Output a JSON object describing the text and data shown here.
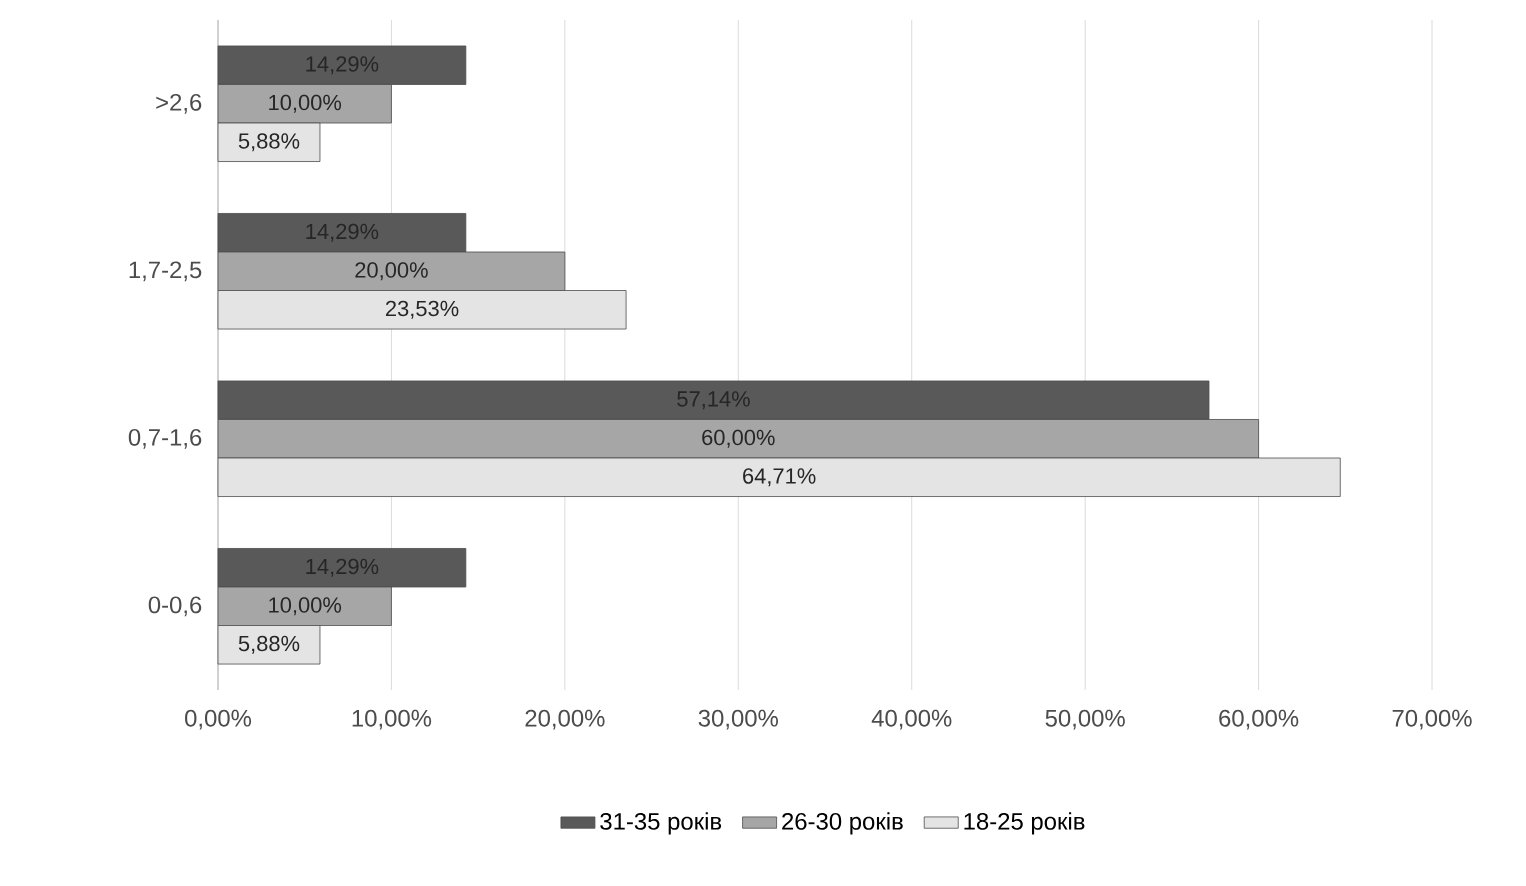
{
  "chart_data": {
    "type": "bar",
    "orientation": "horizontal",
    "categories": [
      ">2,6",
      "1,7-2,5",
      "0,7-1,6",
      "0-0,6"
    ],
    "series": [
      {
        "name": "31-35 років",
        "color": "#595959",
        "values": [
          14.29,
          14.29,
          57.14,
          14.29
        ],
        "value_labels": [
          "14,29%",
          "14,29%",
          "57,14%",
          "14,29%"
        ]
      },
      {
        "name": "26-30 років",
        "color": "#a6a6a6",
        "values": [
          10,
          20,
          60,
          10
        ],
        "value_labels": [
          "10,00%",
          "20,00%",
          "60,00%",
          "10,00%"
        ]
      },
      {
        "name": "18-25 років",
        "color": "#e4e4e4",
        "values": [
          5.88,
          23.53,
          64.71,
          5.88
        ],
        "value_labels": [
          "5,88%",
          "23,53%",
          "64,71%",
          "5,88%"
        ]
      }
    ],
    "xlim": [
      0,
      70
    ],
    "xticks": [
      {
        "value": 0,
        "label": "0,00%"
      },
      {
        "value": 10,
        "label": "10,00%"
      },
      {
        "value": 20,
        "label": "20,00%"
      },
      {
        "value": 30,
        "label": "30,00%"
      },
      {
        "value": 40,
        "label": "40,00%"
      },
      {
        "value": 50,
        "label": "50,00%"
      },
      {
        "value": 60,
        "label": "60,00%"
      },
      {
        "value": 70,
        "label": "70,00%"
      }
    ],
    "grid": "x",
    "legend": "bottom"
  }
}
